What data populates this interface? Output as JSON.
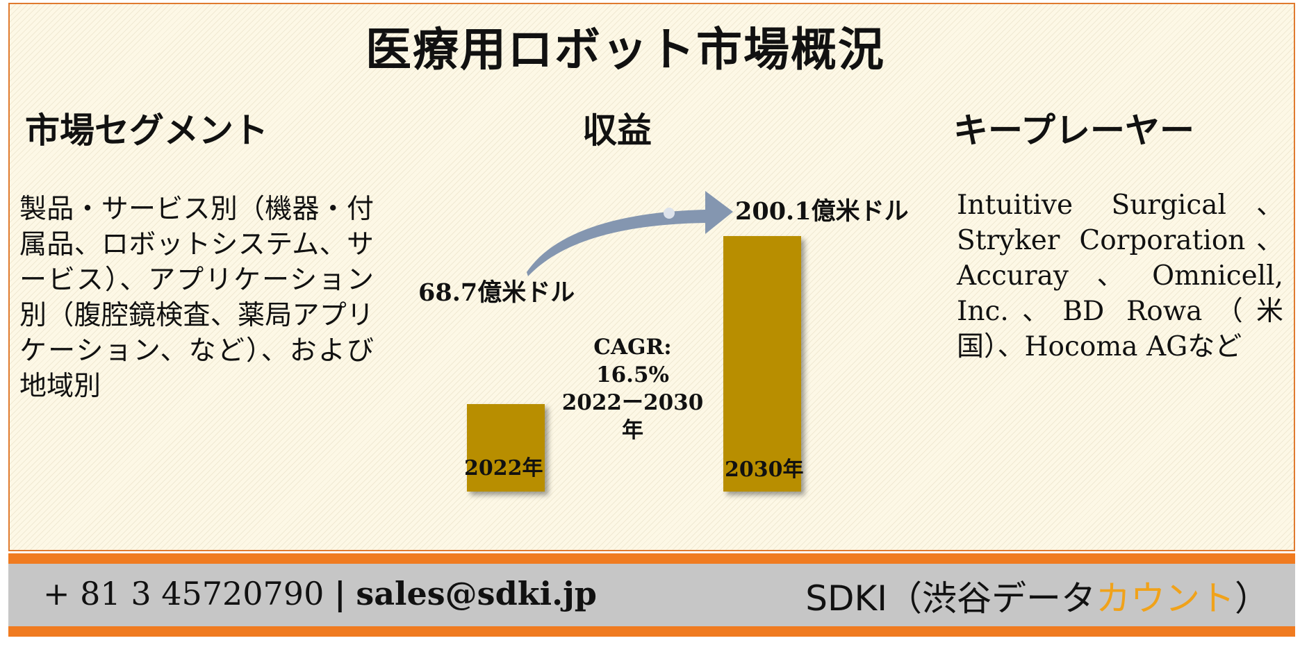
{
  "title": "医療用ロボット市場概況",
  "columns": {
    "segments": {
      "heading": "市場セグメント",
      "text": "製品・サービス別（機器・付属品、ロボットシステム、サービス）、アプリケーション別（腹腔鏡検査、薬局アプリケーション、など）、および地域別"
    },
    "revenue": {
      "heading": "収益"
    },
    "players": {
      "heading": "キープレーヤー",
      "text": "Intuitive Surgical、Stryker Corporation、Accuray、Omnicell, Inc.、BD Rowa（米国）、Hocoma AGなど"
    }
  },
  "chart_data": {
    "type": "bar",
    "categories": [
      "2022年",
      "2030年"
    ],
    "values": [
      68.7,
      200.1
    ],
    "value_labels": [
      "68.7億米ドル",
      "200.1億米ドル"
    ],
    "unit": "億米ドル",
    "cagr_label": "CAGR: 16.5%",
    "cagr_period": "2022ー2030年",
    "bar_color": "#b88e00",
    "arrow_color": "#8496b0"
  },
  "footer": {
    "phone": "+ 81 3 45720790",
    "separator": "|",
    "email": "sales@sdki.jp",
    "brand_main": "SDKI（渋谷データ",
    "brand_accent": "カウント",
    "brand_close": "）",
    "accent_color": "#f0a21a",
    "orange_color": "#f07b20"
  }
}
